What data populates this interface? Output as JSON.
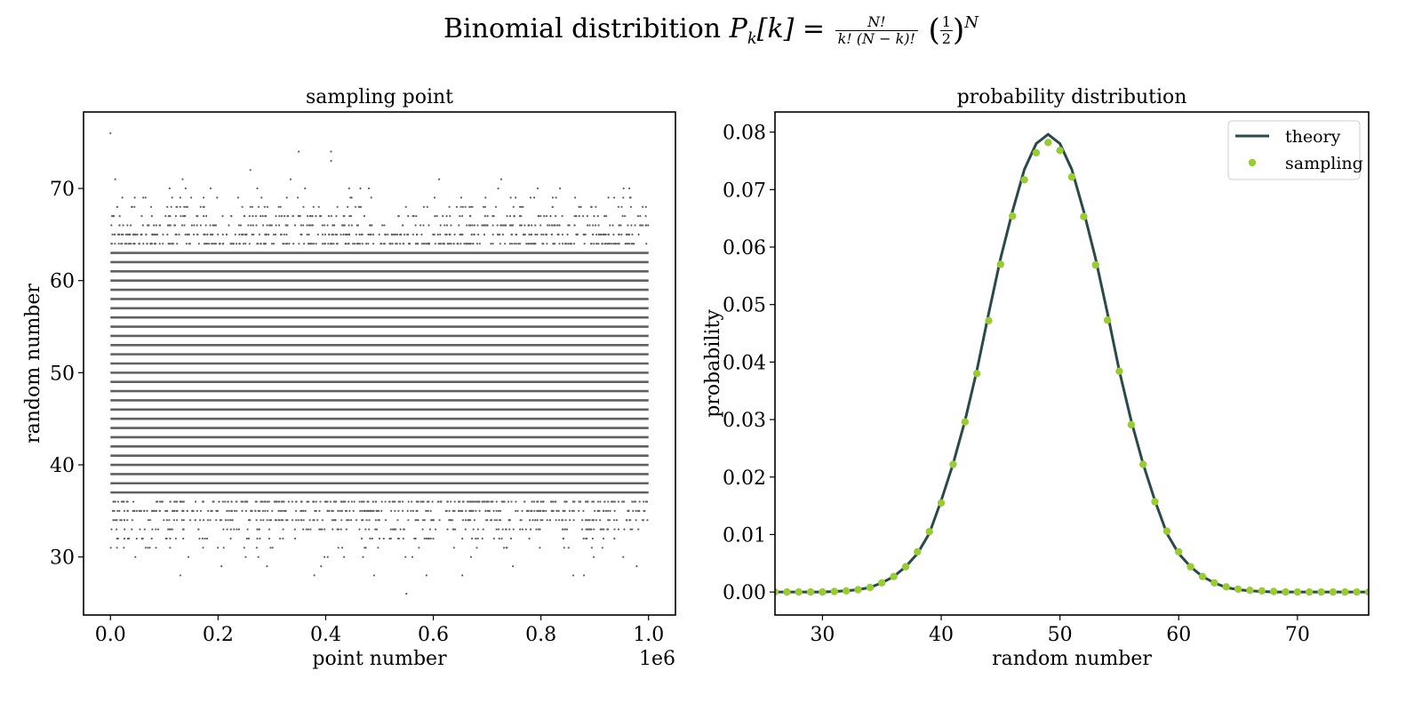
{
  "figure": {
    "title_text": "Binomial distribition",
    "formula_lhs": "P",
    "formula_sub": "k",
    "formula_arg": "[k] =",
    "frac_num": "N!",
    "frac_den": "k! (N − k)!",
    "half_num": "1",
    "half_den": "2",
    "exponent": "N"
  },
  "chart_data": [
    {
      "type": "scatter",
      "title": "sampling point",
      "xlabel": "point number",
      "ylabel": "random number",
      "x_offset_text": "1e6",
      "xlim": [
        -0.05,
        1.05
      ],
      "ylim": [
        23.7,
        78.3
      ],
      "x_ticks": [
        0.0,
        0.2,
        0.4,
        0.6,
        0.8,
        1.0
      ],
      "x_tick_labels": [
        "0.0",
        "0.2",
        "0.4",
        "0.6",
        "0.8",
        "1.0"
      ],
      "y_ticks": [
        30,
        40,
        50,
        60,
        70
      ],
      "y_tick_labels": [
        "30",
        "40",
        "50",
        "60",
        "70"
      ],
      "x_range": [
        0.0,
        1.0
      ],
      "point_color": "#606060",
      "dense_levels": [
        37,
        38,
        39,
        40,
        41,
        42,
        43,
        44,
        45,
        46,
        47,
        48,
        49,
        50,
        51,
        52,
        53,
        54,
        55,
        56,
        57,
        58,
        59,
        60,
        61,
        62,
        63
      ],
      "sparse_levels": [
        {
          "level": 36,
          "density": 0.95
        },
        {
          "level": 35,
          "density": 0.8
        },
        {
          "level": 34,
          "density": 0.6
        },
        {
          "level": 33,
          "density": 0.4
        },
        {
          "level": 32,
          "density": 0.25
        },
        {
          "level": 31,
          "density": 0.12
        },
        {
          "level": 30,
          "density": 0.05
        },
        {
          "level": 29,
          "density": 0.02
        },
        {
          "level": 28,
          "density": 0.01
        },
        {
          "level": 64,
          "density": 0.95
        },
        {
          "level": 65,
          "density": 0.8
        },
        {
          "level": 66,
          "density": 0.6
        },
        {
          "level": 67,
          "density": 0.4
        },
        {
          "level": 68,
          "density": 0.25
        },
        {
          "level": 69,
          "density": 0.12
        },
        {
          "level": 70,
          "density": 0.05
        },
        {
          "level": 71,
          "density": 0.02
        }
      ],
      "outliers": [
        [
          0.0,
          76
        ],
        [
          0.35,
          74
        ],
        [
          0.41,
          74
        ],
        [
          0.41,
          73
        ],
        [
          0.26,
          72
        ],
        [
          0.55,
          26
        ],
        [
          0.13,
          28
        ],
        [
          0.49,
          28
        ],
        [
          0.86,
          28
        ],
        [
          0.88,
          28
        ]
      ]
    },
    {
      "type": "line",
      "title": "probability distribution",
      "xlabel": "random number",
      "ylabel": "probability",
      "xlim": [
        26,
        76
      ],
      "ylim": [
        -0.004,
        0.0835
      ],
      "x_ticks": [
        30,
        40,
        50,
        60,
        70
      ],
      "x_tick_labels": [
        "30",
        "40",
        "50",
        "60",
        "70"
      ],
      "y_ticks": [
        0.0,
        0.01,
        0.02,
        0.03,
        0.04,
        0.05,
        0.06,
        0.07,
        0.08
      ],
      "y_tick_labels": [
        "0.00",
        "0.01",
        "0.02",
        "0.03",
        "0.04",
        "0.05",
        "0.06",
        "0.07",
        "0.08"
      ],
      "legend_position": "upper right",
      "series": [
        {
          "name": "theory",
          "kind": "line",
          "color": "#2a4a4a",
          "x": [
            26,
            27,
            28,
            29,
            30,
            31,
            32,
            33,
            34,
            35,
            36,
            37,
            38,
            39,
            40,
            41,
            42,
            43,
            44,
            45,
            46,
            47,
            48,
            49,
            50,
            51,
            52,
            53,
            54,
            55,
            56,
            57,
            58,
            59,
            60,
            61,
            62,
            63,
            64,
            65,
            66,
            67,
            68,
            69,
            70,
            71,
            72,
            73,
            74,
            75,
            76
          ],
          "y": [
            0.0,
            0.0,
            0.0,
            0.0,
            0.0,
            0.0001,
            0.0002,
            0.0004,
            0.0008,
            0.0016,
            0.0027,
            0.0044,
            0.0067,
            0.0102,
            0.0159,
            0.0223,
            0.0298,
            0.0385,
            0.0485,
            0.058,
            0.0662,
            0.0735,
            0.078,
            0.0796,
            0.078,
            0.0735,
            0.0662,
            0.058,
            0.0485,
            0.0385,
            0.0298,
            0.0223,
            0.0159,
            0.0102,
            0.0067,
            0.0044,
            0.0027,
            0.0016,
            0.0008,
            0.0004,
            0.0002,
            0.0001,
            0.0,
            0.0,
            0.0,
            0.0,
            0.0,
            0.0,
            0.0,
            0.0,
            0.0
          ]
        },
        {
          "name": "sampling",
          "kind": "scatter",
          "color": "#99cc33",
          "x": [
            26,
            27,
            28,
            29,
            30,
            31,
            32,
            33,
            34,
            35,
            36,
            37,
            38,
            39,
            40,
            41,
            42,
            43,
            44,
            45,
            46,
            47,
            48,
            49,
            50,
            51,
            52,
            53,
            54,
            55,
            56,
            57,
            58,
            59,
            60,
            61,
            62,
            63,
            64,
            65,
            66,
            67,
            68,
            69,
            70,
            71,
            72,
            73,
            74,
            75,
            76
          ],
          "y": [
            0.0,
            0.0,
            0.0,
            0.0,
            0.0,
            0.0001,
            0.0002,
            0.0004,
            0.0008,
            0.0016,
            0.0027,
            0.0044,
            0.007,
            0.0105,
            0.0155,
            0.0222,
            0.0296,
            0.038,
            0.0472,
            0.057,
            0.0654,
            0.0717,
            0.0764,
            0.0782,
            0.0768,
            0.0722,
            0.0653,
            0.0569,
            0.0473,
            0.0384,
            0.0291,
            0.0222,
            0.0157,
            0.0106,
            0.007,
            0.0044,
            0.0027,
            0.0016,
            0.0009,
            0.0005,
            0.0003,
            0.0002,
            0.0001,
            0.0,
            0.0,
            0.0,
            0.0,
            0.0,
            0.0,
            0.0,
            0.0
          ]
        }
      ]
    }
  ]
}
